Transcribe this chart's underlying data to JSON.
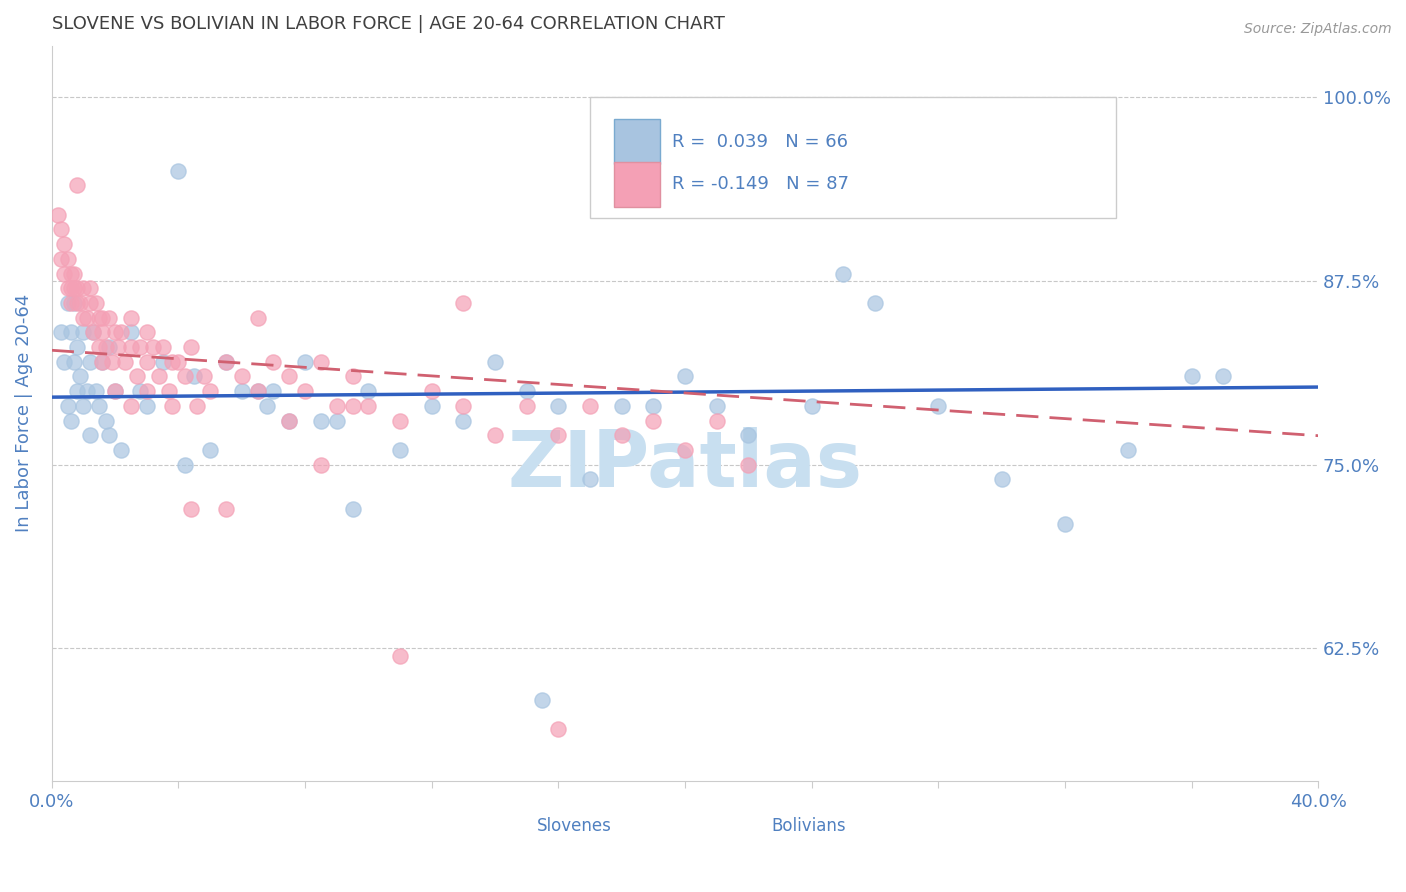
{
  "title": "SLOVENE VS BOLIVIAN IN LABOR FORCE | AGE 20-64 CORRELATION CHART",
  "source_text": "Source: ZipAtlas.com",
  "ylabel": "In Labor Force | Age 20-64",
  "xlim": [
    0.0,
    0.4
  ],
  "ylim": [
    0.535,
    1.035
  ],
  "xticks": [
    0.0,
    0.04,
    0.08,
    0.12,
    0.16,
    0.2,
    0.24,
    0.28,
    0.32,
    0.36,
    0.4
  ],
  "yticks": [
    0.625,
    0.75,
    0.875,
    1.0
  ],
  "ytick_labels": [
    "62.5%",
    "75.0%",
    "87.5%",
    "100.0%"
  ],
  "slovene_color": "#a8c4e0",
  "bolivian_color": "#f4a0b5",
  "slovene_trendline_color": "#3060c0",
  "bolivian_trendline_color": "#d06070",
  "background_color": "#ffffff",
  "grid_color": "#c8c8c8",
  "title_color": "#404040",
  "axis_label_color": "#5080c0",
  "R_slovene": 0.039,
  "N_slovene": 66,
  "R_bolivian": -0.149,
  "N_bolivian": 87,
  "watermark_text": "ZIPatlas",
  "watermark_color": "#c8dff0"
}
